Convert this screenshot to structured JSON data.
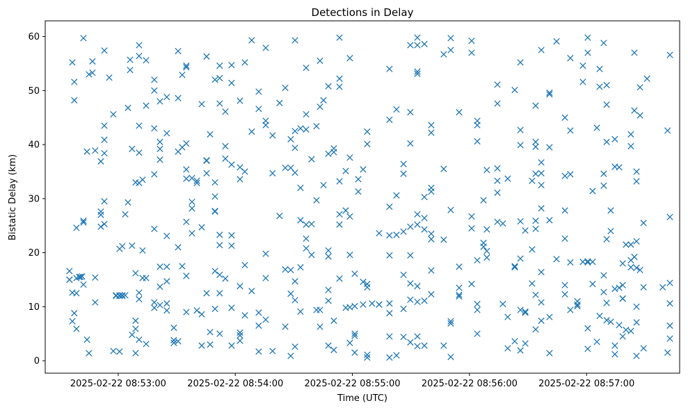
{
  "chart_data": {
    "type": "scatter",
    "title": "Detections in Delay",
    "xlabel": "Time (UTC)",
    "ylabel": "Bistatic Delay (km)",
    "x_units": "seconds after 2025-02-22 08:52:00",
    "xlim": [
      22.6,
      347.7
    ],
    "ylim": [
      -2.3,
      62.9
    ],
    "xticks": [
      {
        "value": 60,
        "label": "2025-02-22 08:53:00"
      },
      {
        "value": 120,
        "label": "2025-02-22 08:54:00"
      },
      {
        "value": 180,
        "label": "2025-02-22 08:55:00"
      },
      {
        "value": 240,
        "label": "2025-02-22 08:56:00"
      },
      {
        "value": 300,
        "label": "2025-02-22 08:57:00"
      }
    ],
    "yticks": [
      {
        "value": 0,
        "label": "0"
      },
      {
        "value": 10,
        "label": "10"
      },
      {
        "value": 20,
        "label": "20"
      },
      {
        "value": 30,
        "label": "30"
      },
      {
        "value": 40,
        "label": "40"
      },
      {
        "value": 50,
        "label": "50"
      },
      {
        "value": 60,
        "label": "60"
      }
    ],
    "grid": false,
    "marker": "x",
    "color": "#1f77b4",
    "series": [
      {
        "name": "detections",
        "columns": [
          [
            35.0,
            [
              15,
              16.6,
              15
            ]
          ],
          [
            36.5,
            [
              55.2,
              12.6,
              7.3
            ]
          ],
          [
            37.5,
            [
              8.8,
              51.6,
              48.2
            ]
          ],
          [
            38.6,
            [
              24.6,
              5.9,
              15.3,
              12.5
            ]
          ],
          [
            40.0,
            [
              15.5
            ]
          ],
          [
            40.7,
            [
              15.5
            ]
          ],
          [
            41.5,
            [
              15.6
            ]
          ],
          [
            42.2,
            [
              59.7,
              25.9,
              25.6,
              14.1
            ]
          ],
          [
            44.0,
            [
              38.7,
              3.9
            ]
          ],
          [
            45.0,
            [
              53,
              1.4
            ]
          ],
          [
            46.8,
            [
              55.4,
              53.3
            ]
          ],
          [
            48.2,
            [
              38.9,
              15.4,
              10.8
            ]
          ],
          [
            51.1,
            [
              36.9,
              24.8,
              27.6,
              27
            ]
          ],
          [
            52.9,
            [
              57.4,
              43.5,
              38.4,
              40.9,
              29.5,
              25.3
            ]
          ],
          [
            55.4,
            [
              52.4
            ]
          ],
          [
            57.5,
            [
              45.6,
              1.8
            ]
          ],
          [
            58.9,
            [
              12.1,
              12
            ]
          ],
          [
            60.7,
            [
              12.1,
              1.7,
              20.7,
              12
            ]
          ],
          [
            62.1,
            [
              12.1,
              21.2,
              12
            ]
          ],
          [
            63.6,
            [
              12.1,
              27.1
            ]
          ],
          [
            65.0,
            [
              46.8,
              29.3
            ]
          ],
          [
            66.1,
            [
              55.7,
              53.8
            ]
          ],
          [
            67.1,
            [
              39.2,
              21.3,
              4.8
            ]
          ],
          [
            68.9,
            [
              33,
              16.2,
              7.4,
              5.9,
              1.4
            ]
          ],
          [
            70.7,
            [
              58.4,
              56.4,
              43.5,
              38.5,
              32.9,
              12.6,
              11.4,
              3.9
            ]
          ],
          [
            72.5,
            [
              33.5,
              20.4,
              15.3
            ]
          ],
          [
            74.3,
            [
              55.6,
              47.2,
              15.3,
              3.1
            ]
          ],
          [
            78.5,
            [
              52,
              50,
              43,
              34.5,
              24.4,
              10.8,
              9.8
            ]
          ],
          [
            81.4,
            [
              48,
              40.5,
              39.2,
              37.2,
              17.4,
              13.7,
              10.3
            ]
          ],
          [
            84.9,
            [
              48.8,
              42.1,
              17.4,
              14.7,
              10.6,
              9.3,
              23.1
            ]
          ],
          [
            88.5,
            [
              6.1,
              3.8,
              3.3
            ]
          ],
          [
            90.7,
            [
              57.3,
              48.6,
              38.7,
              21,
              3.6
            ]
          ],
          [
            92.8,
            [
              52.9,
              39.5,
              17.5
            ]
          ],
          [
            94.9,
            [
              54.6,
              54.3,
              40.2,
              35.4,
              33.7,
              25.7,
              15.7,
              9
            ]
          ],
          [
            97.8,
            [
              33.8,
              29.4,
              23.6,
              28.2
            ]
          ],
          [
            100.3,
            [
              33.3,
              32.9,
              9.3
            ]
          ],
          [
            102.8,
            [
              47.5,
              24.7,
              8.6,
              2.8
            ]
          ],
          [
            105.3,
            [
              56.3,
              37.1,
              37,
              34.7,
              12.5
            ]
          ],
          [
            107.1,
            [
              41.9,
              5.3,
              3
            ]
          ],
          [
            109.6,
            [
              52,
              33,
              30.4,
              27.7,
              27.6,
              16.6,
              9.6
            ]
          ],
          [
            112.0,
            [
              54.6,
              52.3,
              47.6,
              23.3,
              21.4,
              15.9,
              12.5,
              5
            ]
          ],
          [
            114.9,
            [
              39.7,
              46.1,
              37.4,
              15.2
            ]
          ],
          [
            118.1,
            [
              54.7,
              51.4,
              36.3,
              23.2,
              21.3,
              9.8,
              2.8
            ]
          ],
          [
            122.4,
            [
              48.1,
              35.8,
              33.6,
              13.8,
              5.2,
              4.7,
              3.7
            ]
          ],
          [
            124.9,
            [
              55.2,
              35,
              17.7,
              8.4
            ]
          ],
          [
            128.4,
            [
              59.3,
              42.4,
              12.9
            ]
          ],
          [
            132.0,
            [
              46.6,
              49.8,
              1.7,
              8.9,
              6.5
            ]
          ],
          [
            135.6,
            [
              57.9,
              44.4,
              43.6,
              19.8,
              15.3,
              7.6
            ]
          ],
          [
            139.1,
            [
              41.7,
              34.7,
              1.8
            ]
          ],
          [
            142.7,
            [
              47.7,
              26.8
            ]
          ],
          [
            145.6,
            [
              50.5,
              35.7,
              16.9,
              6.3
            ]
          ],
          [
            148.4,
            [
              41,
              35.7,
              16.8,
              12.4,
              0.9
            ]
          ],
          [
            150.6,
            [
              59.3,
              42.5,
              39.4,
              34.8,
              14.7,
              11.2,
              2.6
            ]
          ],
          [
            153.4,
            [
              43,
              32,
              26,
              17.3,
              9.1
            ]
          ],
          [
            156.3,
            [
              54.2,
              45.6,
              42.8,
              25.2,
              22.6,
              20.8
            ]
          ],
          [
            159.1,
            [
              37.3,
              25.3,
              19.6
            ]
          ],
          [
            161.6,
            [
              43.4,
              29.7,
              9.4
            ]
          ],
          [
            163.4,
            [
              55.5,
              47,
              9.4,
              6.3
            ]
          ],
          [
            165.2,
            [
              48.2,
              32.5
            ]
          ],
          [
            167.7,
            [
              50.8,
              38.3,
              20.4,
              19.3,
              13.1,
              11.1,
              2.8
            ]
          ],
          [
            170.5,
            [
              39.3,
              38.6,
              7.4,
              2
            ]
          ],
          [
            173.4,
            [
              59.8,
              52.2,
              50.7,
              33.2,
              27.1,
              25.2,
              15.2
            ]
          ],
          [
            176.6,
            [
              35.1,
              27.8,
              9.8
            ]
          ],
          [
            178.7,
            [
              56,
              37.6,
              26.7,
              19.6,
              9.9,
              3.3
            ]
          ],
          [
            181.2,
            [
              16.1,
              10.1,
              5,
              4.6,
              1.5
            ]
          ],
          [
            183.0,
            [
              33.6,
              31.3
            ]
          ],
          [
            185.5,
            [
              35.4,
              14.6,
              10.4
            ]
          ],
          [
            187.6,
            [
              42.4,
              40.1,
              14.2,
              13.6,
              1.1,
              0.6
            ]
          ],
          [
            190.1,
            [
              10.6
            ]
          ],
          [
            193.7,
            [
              23.6,
              10.4,
              10.4
            ]
          ],
          [
            199.0,
            [
              54,
              44.6,
              28.5,
              23.2,
              19.5,
              10.6,
              8.8,
              4.5,
              0.6
            ]
          ],
          [
            202.6,
            [
              46.5,
              30.6,
              23.3,
              1
            ]
          ],
          [
            206.2,
            [
              36.4,
              34.6,
              23.9,
              15.9,
              9.6,
              4.4
            ]
          ],
          [
            209.7,
            [
              58.4,
              46,
              40.2,
              24.8,
              19.5,
              14.3,
              11.3,
              3.4
            ]
          ],
          [
            213.3,
            [
              53.5,
              53.1,
              58.4,
              59.8,
              27.1,
              25.2,
              13.8,
              10.9,
              4.5,
              2.7
            ]
          ],
          [
            216.9,
            [
              58.6,
              30.3,
              26.4,
              24.3,
              11.1,
              2.8
            ]
          ],
          [
            220.4,
            [
              42.2,
              43.6,
              32,
              31.3,
              23.5,
              22.5,
              16.7,
              12.3
            ]
          ],
          [
            226.8,
            [
              56.7,
              35.5,
              22.4,
              2.8
            ]
          ],
          [
            230.4,
            [
              57.5,
              59.7,
              27.9,
              7.3,
              6.9,
              0.7
            ]
          ],
          [
            234.7,
            [
              46,
              17.4,
              13.5,
              11.9,
              12.2
            ]
          ],
          [
            241.1,
            [
              59.2,
              57,
              26.7,
              24.5,
              14.2
            ]
          ],
          [
            244.0,
            [
              44.4,
              43.6,
              40.6,
              18.6,
              10.5,
              9.4,
              5
            ]
          ],
          [
            247.2,
            [
              29.7,
              21.8,
              21.1
            ]
          ],
          [
            248.9,
            [
              35.3,
              24.3,
              20.3,
              19.1
            ]
          ],
          [
            254.3,
            [
              51.1,
              47.6,
              35.6,
              33.3,
              31.1,
              25.7
            ]
          ],
          [
            257.1,
            [
              25.4,
              10.5
            ]
          ],
          [
            259.6,
            [
              33.7,
              8.1,
              2.3
            ]
          ],
          [
            263.2,
            [
              50.1,
              17.3,
              17.5,
              3.6
            ]
          ],
          [
            266.1,
            [
              55.2,
              42.7,
              39.9,
              25.8,
              18.9,
              9.4,
              1.9
            ]
          ],
          [
            268.6,
            [
              8.9,
              9.1,
              3.2,
              24.1
            ]
          ],
          [
            272.1,
            [
              33.3,
              20.6,
              14.3
            ]
          ],
          [
            273.9,
            [
              47.2,
              40.5,
              39.6,
              34.6,
              25.9,
              24.4,
              5.8,
              12.2
            ]
          ],
          [
            276.8,
            [
              57.5,
              36.7,
              34.7,
              32.5,
              28.2,
              16.4,
              10.8,
              7.4
            ]
          ],
          [
            281.0,
            [
              49.3,
              49.6,
              39.5,
              26,
              8.1,
              1.4
            ]
          ],
          [
            284.6,
            [
              59.1,
              18.8
            ]
          ],
          [
            288.9,
            [
              45,
              34.2,
              27.8,
              22.6,
              14,
              12.3
            ]
          ],
          [
            291.7,
            [
              56,
              34.5,
              42.6,
              18.2,
              9.4
            ]
          ],
          [
            295.3,
            [
              10.1,
              11,
              10.4
            ]
          ],
          [
            298.1,
            [
              54.6,
              51.6,
              18.3
            ]
          ],
          [
            300.6,
            [
              59.8,
              57,
              18.4,
              18.2,
              6,
              2.2
            ]
          ],
          [
            303.1,
            [
              31.4,
              18.3,
              14.2
            ]
          ],
          [
            305.3,
            [
              43.1,
              3.5
            ]
          ],
          [
            306.7,
            [
              54,
              50.7,
              8.3
            ]
          ],
          [
            308.8,
            [
              58.8,
              32.4,
              34.6,
              15.8,
              12.7
            ]
          ],
          [
            310.3,
            [
              51,
              47.4,
              40.5,
              22.5,
              10.7,
              7.5
            ]
          ],
          [
            312.4,
            [
              27.8,
              24,
              7.2
            ]
          ],
          [
            314.5,
            [
              35.9,
              41,
              13.3,
              2.8,
              1.2
            ]
          ],
          [
            316.7,
            [
              35.8,
              13.5,
              6.6
            ]
          ],
          [
            318.5,
            [
              18,
              14,
              11.5,
              11.5,
              4.5
            ]
          ],
          [
            320.2,
            [
              21.5,
              5.7
            ]
          ],
          [
            322.7,
            [
              41.9,
              39.7,
              21.5,
              18.6,
              17.3,
              5.5
            ]
          ],
          [
            324.5,
            [
              57,
              46.3,
              19.2
            ]
          ],
          [
            325.6,
            [
              35,
              33.2,
              22.1,
              17.2,
              10,
              7.1,
              0.9
            ]
          ],
          [
            327.4,
            [
              45.4,
              50.6,
              16.8
            ]
          ],
          [
            329.2,
            [
              25.5,
              13.6,
              2.3
            ]
          ],
          [
            331.0,
            [
              52.2
            ]
          ],
          [
            339.0,
            [
              13.6
            ]
          ],
          [
            341.5,
            [
              42.6,
              1.5
            ]
          ],
          [
            342.7,
            [
              56.6,
              26.6,
              14.4,
              10.6,
              6.5,
              4.1
            ]
          ]
        ]
      }
    ]
  }
}
